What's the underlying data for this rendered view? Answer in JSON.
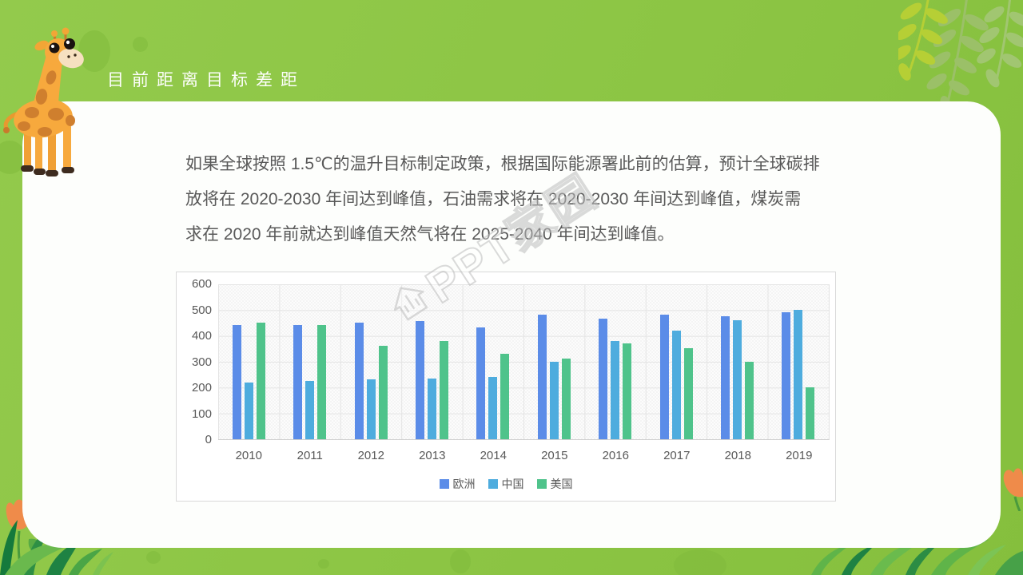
{
  "slide": {
    "title": "目前距离目标差距"
  },
  "paragraph": {
    "lines": [
      "如果全球按照 1.5℃的温升目标制定政策，根据国际能源署此前的估算，预计全球碳排",
      "放将在 2020-2030 年间达到峰值，石油需求将在 2020-2030 年间达到峰值，煤炭需",
      "求在 2020 年前就达到峰值天然气将在 2025-2040 年间达到峰值。"
    ]
  },
  "watermark": {
    "text": "PPT家园"
  },
  "icons": {
    "giraffe": "giraffe-illustration",
    "fern": "fern-leaves-icon",
    "grass_left": "grass-left-icon",
    "grass_right": "grass-right-icon",
    "tulip_left": "tulip-icon",
    "tulip_right": "tulip-icon",
    "watermark_house": "house-logo-icon"
  },
  "colors": {
    "slide_background": "#8CC544",
    "card_background": "#FDFEFC",
    "title_text": "#FDFEFB",
    "body_text": "#595959",
    "chart_border": "#D9D9D9",
    "gridline": "#E4E4E4",
    "watermark_outline": "#BDBDBD",
    "series_europe": "#5B8CE8",
    "series_china": "#4EACDE",
    "series_usa": "#4FC38B"
  },
  "chart_data": {
    "type": "bar",
    "title": "",
    "xlabel": "",
    "ylabel": "",
    "categories": [
      "2010",
      "2011",
      "2012",
      "2013",
      "2014",
      "2015",
      "2016",
      "2017",
      "2018",
      "2019"
    ],
    "series": [
      {
        "name": "欧洲",
        "color": "#5B8CE8",
        "values": [
          440,
          440,
          450,
          455,
          430,
          480,
          465,
          480,
          475,
          490
        ]
      },
      {
        "name": "中国",
        "color": "#4EACDE",
        "values": [
          220,
          225,
          230,
          235,
          240,
          300,
          380,
          420,
          460,
          500
        ]
      },
      {
        "name": "美国",
        "color": "#4FC38B",
        "values": [
          450,
          440,
          360,
          380,
          330,
          310,
          370,
          350,
          300,
          200
        ]
      }
    ],
    "ylim": [
      0,
      600
    ],
    "yticks": [
      0,
      100,
      200,
      300,
      400,
      500,
      600
    ],
    "grid": true,
    "legend_position": "bottom"
  }
}
